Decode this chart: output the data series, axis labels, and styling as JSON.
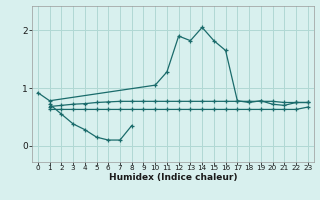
{
  "bg_color": "#d8f0ee",
  "grid_color": "#b0d8d4",
  "line_color": "#1a6b6b",
  "x_label": "Humidex (Indice chaleur)",
  "x_ticks": [
    0,
    1,
    2,
    3,
    4,
    5,
    6,
    7,
    8,
    9,
    10,
    11,
    12,
    13,
    14,
    15,
    16,
    17,
    18,
    19,
    20,
    21,
    22,
    23
  ],
  "y_ticks": [
    0,
    1,
    2
  ],
  "ylim": [
    -0.28,
    2.42
  ],
  "xlim": [
    -0.5,
    23.5
  ],
  "series": [
    {
      "x": [
        0,
        1,
        10,
        11,
        12,
        13,
        14,
        15,
        16,
        17,
        18,
        19,
        20,
        21,
        22,
        23
      ],
      "y": [
        0.92,
        0.78,
        1.05,
        1.28,
        1.9,
        1.82,
        2.05,
        1.82,
        1.65,
        0.78,
        0.75,
        0.78,
        0.72,
        0.7,
        0.75,
        0.75
      ]
    },
    {
      "x": [
        1,
        2,
        3,
        4,
        5,
        6,
        7,
        8
      ],
      "y": [
        0.72,
        0.55,
        0.38,
        0.28,
        0.15,
        0.1,
        0.1,
        0.35
      ]
    },
    {
      "x": [
        1,
        2,
        3,
        4,
        5,
        6,
        7,
        8,
        9,
        10,
        11,
        12,
        13,
        14,
        15,
        16,
        17,
        18,
        19,
        20,
        21,
        22,
        23
      ],
      "y": [
        0.63,
        0.63,
        0.63,
        0.63,
        0.63,
        0.63,
        0.63,
        0.63,
        0.63,
        0.63,
        0.63,
        0.63,
        0.63,
        0.63,
        0.63,
        0.63,
        0.63,
        0.63,
        0.63,
        0.63,
        0.63,
        0.63,
        0.67
      ]
    },
    {
      "x": [
        1,
        2,
        3,
        4,
        5,
        6,
        7,
        8,
        9,
        10,
        11,
        12,
        13,
        14,
        15,
        16,
        17,
        18,
        19,
        20,
        21,
        22,
        23
      ],
      "y": [
        0.68,
        0.7,
        0.72,
        0.73,
        0.75,
        0.76,
        0.77,
        0.77,
        0.77,
        0.77,
        0.77,
        0.77,
        0.77,
        0.77,
        0.77,
        0.77,
        0.77,
        0.77,
        0.77,
        0.77,
        0.75,
        0.75,
        0.75
      ]
    }
  ]
}
